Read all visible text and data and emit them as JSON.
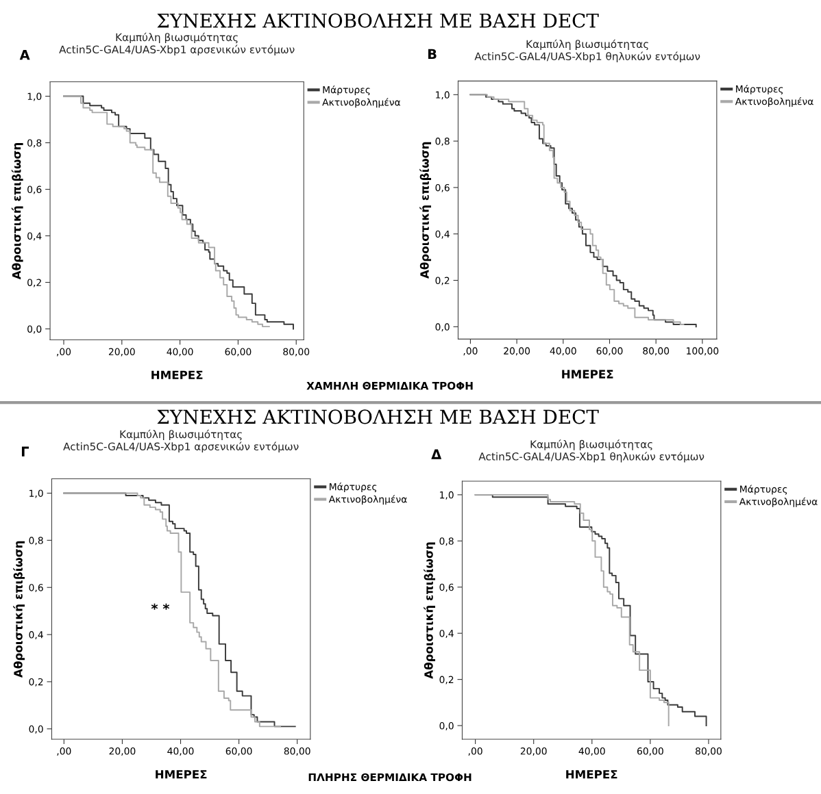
{
  "chart_data": [
    {
      "type": "step",
      "title": "Καμπύλη βιωσιμότητας\nActin5C-GAL4/UAS-Xbp1 αρσενικών εντόμων",
      "xlabel": "ΗΜΕΡΕΣ",
      "ylabel": "Αθροιστική επιβίωση",
      "annotations": [
        "A",
        "ΣΥΝΕΧΗΣ ΑΚΤΙΝΟΒΟΛΗΣΗ ΜΕ ΒΑΣΗ DECT",
        "ΧΑΜΗΛΗ ΘΕΡΜΙΔΙΚΑ ΤΡΟΦΗ"
      ],
      "xlim": [
        -4.7,
        82.6
      ],
      "ylim": [
        -0.047,
        1.062
      ],
      "xticks": [
        {
          "value": 0,
          "label": ",00"
        },
        {
          "value": 20,
          "label": "20,00"
        },
        {
          "value": 40,
          "label": "40,00"
        },
        {
          "value": 60,
          "label": "60,00"
        },
        {
          "value": 80,
          "label": "80,00"
        }
      ],
      "yticks": [
        {
          "value": 0,
          "label": "0,0"
        },
        {
          "value": 0.2,
          "label": "0,2"
        },
        {
          "value": 0.4,
          "label": "0,4"
        },
        {
          "value": 0.6,
          "label": "0,6"
        },
        {
          "value": 0.8,
          "label": "0,8"
        },
        {
          "value": 1.0,
          "label": "1,0"
        }
      ],
      "legend": "top right",
      "grid": false,
      "marker": "none",
      "line_style": "solid",
      "series": [
        {
          "name": "Μάρτυρες",
          "color": "#3a3a3a",
          "x": [
            0,
            6.7,
            9.0,
            13.0,
            13.8,
            16.5,
            17.7,
            18.9,
            21.6,
            22.8,
            27.9,
            29.9,
            31.0,
            32.6,
            35.0,
            36.0,
            36.9,
            37.7,
            38.9,
            40.9,
            42.1,
            43.6,
            44.4,
            45.2,
            46.4,
            47.9,
            48.6,
            49.9,
            50.3,
            51.9,
            53.1,
            55.0,
            56.2,
            57.0,
            58.2,
            62.1,
            64.8,
            66.0,
            69.2,
            70.0,
            73.9,
            75.8,
            79.0
          ],
          "values": [
            1.0,
            0.97,
            0.96,
            0.95,
            0.94,
            0.93,
            0.92,
            0.87,
            0.86,
            0.84,
            0.82,
            0.77,
            0.75,
            0.72,
            0.69,
            0.62,
            0.59,
            0.56,
            0.53,
            0.49,
            0.47,
            0.45,
            0.42,
            0.4,
            0.38,
            0.37,
            0.34,
            0.33,
            0.3,
            0.28,
            0.27,
            0.25,
            0.24,
            0.21,
            0.18,
            0.15,
            0.11,
            0.06,
            0.04,
            0.03,
            0.03,
            0.02,
            0.0
          ]
        },
        {
          "name": "Ακτινοβολημένα",
          "color": "#a8a8a8",
          "x": [
            0,
            5.9,
            6.7,
            9.0,
            9.8,
            14.9,
            16.9,
            20.8,
            21.6,
            22.8,
            24.8,
            25.2,
            27.9,
            30.7,
            31.8,
            33.0,
            35.8,
            36.9,
            39.3,
            40.1,
            40.7,
            42.4,
            44.0,
            46.4,
            49.9,
            51.9,
            52.3,
            53.8,
            55.0,
            56.2,
            57.8,
            58.6,
            59.3,
            60.1,
            62.9,
            64.8,
            66.8,
            68.4,
            70.7
          ],
          "values": [
            1.0,
            0.97,
            0.95,
            0.94,
            0.93,
            0.88,
            0.87,
            0.86,
            0.85,
            0.8,
            0.79,
            0.78,
            0.77,
            0.67,
            0.65,
            0.63,
            0.57,
            0.54,
            0.52,
            0.5,
            0.47,
            0.45,
            0.39,
            0.37,
            0.35,
            0.28,
            0.25,
            0.22,
            0.19,
            0.14,
            0.12,
            0.09,
            0.06,
            0.05,
            0.04,
            0.03,
            0.02,
            0.01,
            0.01
          ]
        }
      ]
    },
    {
      "type": "step",
      "title": "Καμπύλη βιωσιμότητας\nActin5C-GAL4/UAS-Xbp1 θηλυκών εντόμων",
      "xlabel": "ΗΜΕΡΕΣ",
      "ylabel": "Αθροιστική επιβίωση",
      "annotations": [
        "B"
      ],
      "xlim": [
        -5.3,
        106.2
      ],
      "ylim": [
        -0.053,
        1.059
      ],
      "xticks": [
        {
          "value": 0,
          "label": ",00"
        },
        {
          "value": 20,
          "label": "20,00"
        },
        {
          "value": 40,
          "label": "40,00"
        },
        {
          "value": 60,
          "label": "60,00"
        },
        {
          "value": 80,
          "label": "80,00"
        },
        {
          "value": 100,
          "label": "100,00"
        }
      ],
      "yticks": [
        {
          "value": 0,
          "label": "0,0"
        },
        {
          "value": 0.2,
          "label": "0,2"
        },
        {
          "value": 0.4,
          "label": "0,4"
        },
        {
          "value": 0.6,
          "label": "0,6"
        },
        {
          "value": 0.8,
          "label": "0,8"
        },
        {
          "value": 1.0,
          "label": "1,0"
        }
      ],
      "legend": "top right",
      "grid": false,
      "marker": "none",
      "line_style": "solid",
      "series": [
        {
          "name": "Μάρτυρες",
          "color": "#3a3a3a",
          "x": [
            0,
            6.7,
            9.1,
            12.1,
            14.0,
            17.9,
            18.9,
            21.9,
            23.8,
            25.3,
            26.3,
            27.7,
            29.7,
            31.2,
            32.6,
            34.6,
            36.1,
            37.0,
            38.5,
            39.5,
            41.0,
            42.4,
            43.9,
            45.4,
            46.8,
            48.3,
            49.8,
            51.7,
            53.2,
            54.7,
            57.1,
            59.1,
            61.5,
            63.0,
            64.5,
            66.0,
            67.9,
            69.4,
            70.9,
            72.8,
            74.8,
            76.7,
            78.7,
            79.2,
            84.1,
            87.5,
            97.3
          ],
          "values": [
            1.0,
            0.99,
            0.98,
            0.97,
            0.96,
            0.94,
            0.93,
            0.92,
            0.91,
            0.9,
            0.88,
            0.87,
            0.81,
            0.79,
            0.78,
            0.77,
            0.7,
            0.65,
            0.62,
            0.59,
            0.53,
            0.51,
            0.49,
            0.46,
            0.43,
            0.4,
            0.35,
            0.32,
            0.3,
            0.29,
            0.26,
            0.24,
            0.22,
            0.2,
            0.19,
            0.16,
            0.15,
            0.12,
            0.11,
            0.09,
            0.08,
            0.07,
            0.05,
            0.03,
            0.02,
            0.01,
            0.0
          ]
        },
        {
          "name": "Ακτινοβολημένα",
          "color": "#a8a8a8",
          "x": [
            0,
            7.2,
            10.1,
            16.5,
            23.3,
            24.8,
            26.8,
            28.7,
            31.2,
            31.7,
            34.1,
            35.6,
            36.1,
            37.5,
            39.0,
            40.5,
            41.5,
            42.9,
            44.9,
            46.4,
            47.8,
            51.7,
            52.7,
            54.2,
            55.2,
            56.2,
            57.1,
            58.6,
            60.1,
            62.0,
            64.0,
            66.0,
            67.9,
            70.9,
            76.7,
            87.5,
            90.5,
            91.9
          ],
          "values": [
            1.0,
            0.99,
            0.98,
            0.97,
            0.94,
            0.91,
            0.89,
            0.88,
            0.87,
            0.79,
            0.76,
            0.73,
            0.64,
            0.62,
            0.6,
            0.58,
            0.54,
            0.5,
            0.48,
            0.45,
            0.42,
            0.4,
            0.35,
            0.33,
            0.3,
            0.29,
            0.23,
            0.18,
            0.16,
            0.11,
            0.1,
            0.09,
            0.08,
            0.04,
            0.03,
            0.02,
            0.01,
            0.01
          ]
        }
      ]
    },
    {
      "type": "step",
      "title": "Καμπύλη βιωσιμότητας\nActin5C-GAL4/UAS-Xbp1 αρσενικών εντόμων",
      "xlabel": "ΗΜΕΡΕΣ",
      "ylabel": "Αθροιστική επιβίωση",
      "annotations": [
        "Γ",
        "ΣΥΝΕΧΗΣ ΑΚΤΙΝΟΒΟΛΗΣΗ ΜΕ ΒΑΣΗ DECT",
        "ΠΛΗΡΗΣ ΘΕΡΜΙΔΙΚΑ ΤΡΟΦΗ",
        "* *"
      ],
      "xlim": [
        -4.2,
        84.5
      ],
      "ylim": [
        -0.044,
        1.061
      ],
      "xticks": [
        {
          "value": 0,
          "label": ",00"
        },
        {
          "value": 20,
          "label": "20,00"
        },
        {
          "value": 40,
          "label": "40,00"
        },
        {
          "value": 60,
          "label": "60,00"
        },
        {
          "value": 80,
          "label": "80,00"
        }
      ],
      "yticks": [
        {
          "value": 0,
          "label": "0,0"
        },
        {
          "value": 0.2,
          "label": "0,2"
        },
        {
          "value": 0.4,
          "label": "0,4"
        },
        {
          "value": 0.6,
          "label": "0,6"
        },
        {
          "value": 0.8,
          "label": "0,8"
        },
        {
          "value": 1.0,
          "label": "1,0"
        }
      ],
      "legend": "top right",
      "grid": false,
      "marker": "none",
      "line_style": "solid",
      "series": [
        {
          "name": "Μάρτυρες",
          "color": "#3a3a3a",
          "x": [
            0,
            21.2,
            27.1,
            29.1,
            31.4,
            33.4,
            36.1,
            37.3,
            38.1,
            41.2,
            42.0,
            43.2,
            44.4,
            45.2,
            46.2,
            47.1,
            47.9,
            48.5,
            49.1,
            51.0,
            53.2,
            55.4,
            57.3,
            59.3,
            61.2,
            64.2,
            65.2,
            66.3,
            72.2,
            79.3
          ],
          "values": [
            1.0,
            0.99,
            0.98,
            0.97,
            0.96,
            0.95,
            0.88,
            0.87,
            0.85,
            0.84,
            0.83,
            0.75,
            0.74,
            0.69,
            0.59,
            0.55,
            0.53,
            0.51,
            0.49,
            0.48,
            0.36,
            0.29,
            0.24,
            0.16,
            0.14,
            0.06,
            0.05,
            0.03,
            0.01,
            0.01
          ]
        },
        {
          "name": "Ακτινοβολημένα",
          "color": "#a8a8a8",
          "x": [
            0,
            25.2,
            26.3,
            27.5,
            29.5,
            31.4,
            33.0,
            33.8,
            35.0,
            35.4,
            36.5,
            39.3,
            40.2,
            43.2,
            44.4,
            45.6,
            46.4,
            47.1,
            48.7,
            50.3,
            53.0,
            54.9,
            56.5,
            57.1,
            64.2,
            65.5,
            67.1,
            74.2
          ],
          "values": [
            1.0,
            0.99,
            0.98,
            0.95,
            0.94,
            0.93,
            0.92,
            0.89,
            0.86,
            0.84,
            0.83,
            0.75,
            0.58,
            0.45,
            0.43,
            0.41,
            0.39,
            0.37,
            0.34,
            0.29,
            0.16,
            0.13,
            0.12,
            0.08,
            0.05,
            0.03,
            0.01,
            0.01
          ]
        }
      ]
    },
    {
      "type": "step",
      "title": "Καμπύλη βιωσιμότητας\nActin5C-GAL4/UAS-Xbp1 θηλυκών εντόμων",
      "xlabel": "ΗΜΕΡΕΣ",
      "ylabel": "Αθροιστική επιβίωση",
      "annotations": [
        "Δ"
      ],
      "xlim": [
        -4.5,
        84.2
      ],
      "ylim": [
        -0.059,
        1.059
      ],
      "xticks": [
        {
          "value": 0,
          "label": ",00"
        },
        {
          "value": 20,
          "label": "20,00"
        },
        {
          "value": 40,
          "label": "40,00"
        },
        {
          "value": 60,
          "label": "60,00"
        },
        {
          "value": 80,
          "label": "80,00"
        }
      ],
      "yticks": [
        {
          "value": 0,
          "label": "0,0"
        },
        {
          "value": 0.2,
          "label": "0,2"
        },
        {
          "value": 0.4,
          "label": "0,4"
        },
        {
          "value": 0.6,
          "label": "0,6"
        },
        {
          "value": 0.8,
          "label": "0,8"
        },
        {
          "value": 1.0,
          "label": "1,0"
        }
      ],
      "legend": "top right",
      "grid": false,
      "marker": "none",
      "line_style": "solid",
      "series": [
        {
          "name": "Μάρτυρες",
          "color": "#3a3a3a",
          "x": [
            0,
            5.9,
            24.9,
            30.9,
            34.8,
            35.8,
            39.9,
            41.1,
            42.3,
            43.4,
            44.5,
            45.3,
            46.0,
            46.9,
            48.2,
            49.2,
            50.9,
            53.1,
            54.9,
            59.2,
            61.1,
            63.1,
            64.1,
            65.1,
            66.0,
            69.4,
            71.0,
            75.3,
            79.2
          ],
          "values": [
            1.0,
            0.99,
            0.96,
            0.95,
            0.94,
            0.86,
            0.84,
            0.83,
            0.82,
            0.81,
            0.79,
            0.77,
            0.66,
            0.65,
            0.62,
            0.55,
            0.52,
            0.39,
            0.31,
            0.19,
            0.16,
            0.14,
            0.12,
            0.11,
            0.09,
            0.08,
            0.06,
            0.04,
            0.0
          ]
        },
        {
          "name": "Ακτινοβολημένα",
          "color": "#a8a8a8",
          "x": [
            0,
            24.9,
            25.7,
            34.0,
            36.0,
            37.1,
            39.1,
            40.1,
            41.1,
            43.2,
            44.0,
            45.3,
            46.2,
            47.1,
            48.6,
            50.1,
            52.9,
            54.1,
            56.3,
            60.0,
            63.1,
            64.7,
            66.3
          ],
          "values": [
            1.0,
            0.98,
            0.97,
            0.96,
            0.92,
            0.89,
            0.85,
            0.8,
            0.73,
            0.67,
            0.6,
            0.58,
            0.57,
            0.52,
            0.51,
            0.47,
            0.35,
            0.32,
            0.24,
            0.12,
            0.11,
            0.1,
            0.0
          ]
        }
      ]
    }
  ]
}
